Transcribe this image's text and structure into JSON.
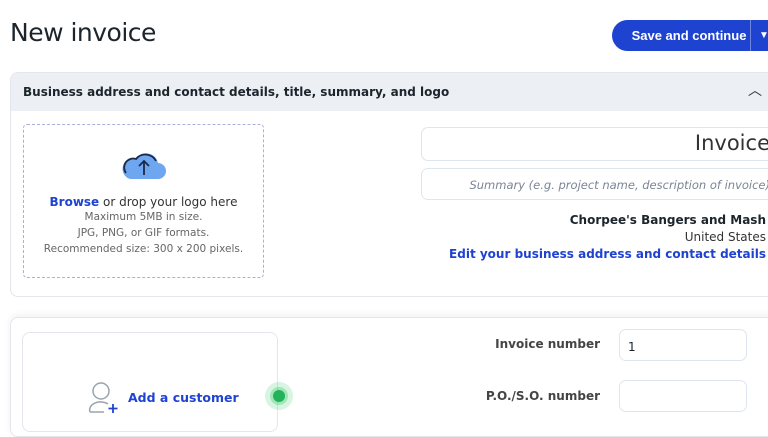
{
  "header": {
    "title": "New invoice",
    "save_label": "Save and continue",
    "save_menu_icon": "caret-down-icon"
  },
  "business_section": {
    "header": "Business address and contact details, title, summary, and logo",
    "collapse_icon": "chevron-up-icon",
    "upload": {
      "icon": "cloud-upload-icon",
      "browse": "Browse",
      "drop_text": " or drop your logo here",
      "lines": [
        "Maximum 5MB in size.",
        "JPG, PNG, or GIF formats.",
        "Recommended size: 300 x 200 pixels."
      ]
    },
    "title_value": "Invoice",
    "summary_placeholder": "Summary (e.g. project name, description of invoice)",
    "business_name": "Chorpee's Bangers and Mash",
    "country": "United States",
    "edit_link": "Edit your business address and contact details"
  },
  "customer_section": {
    "add_customer": "Add a customer",
    "invoice_number_label": "Invoice number",
    "invoice_number_value": "1",
    "po_label": "P.O./S.O. number",
    "po_value": ""
  },
  "colors": {
    "accent": "#1f43d1",
    "status_dot": "#22b35a"
  }
}
